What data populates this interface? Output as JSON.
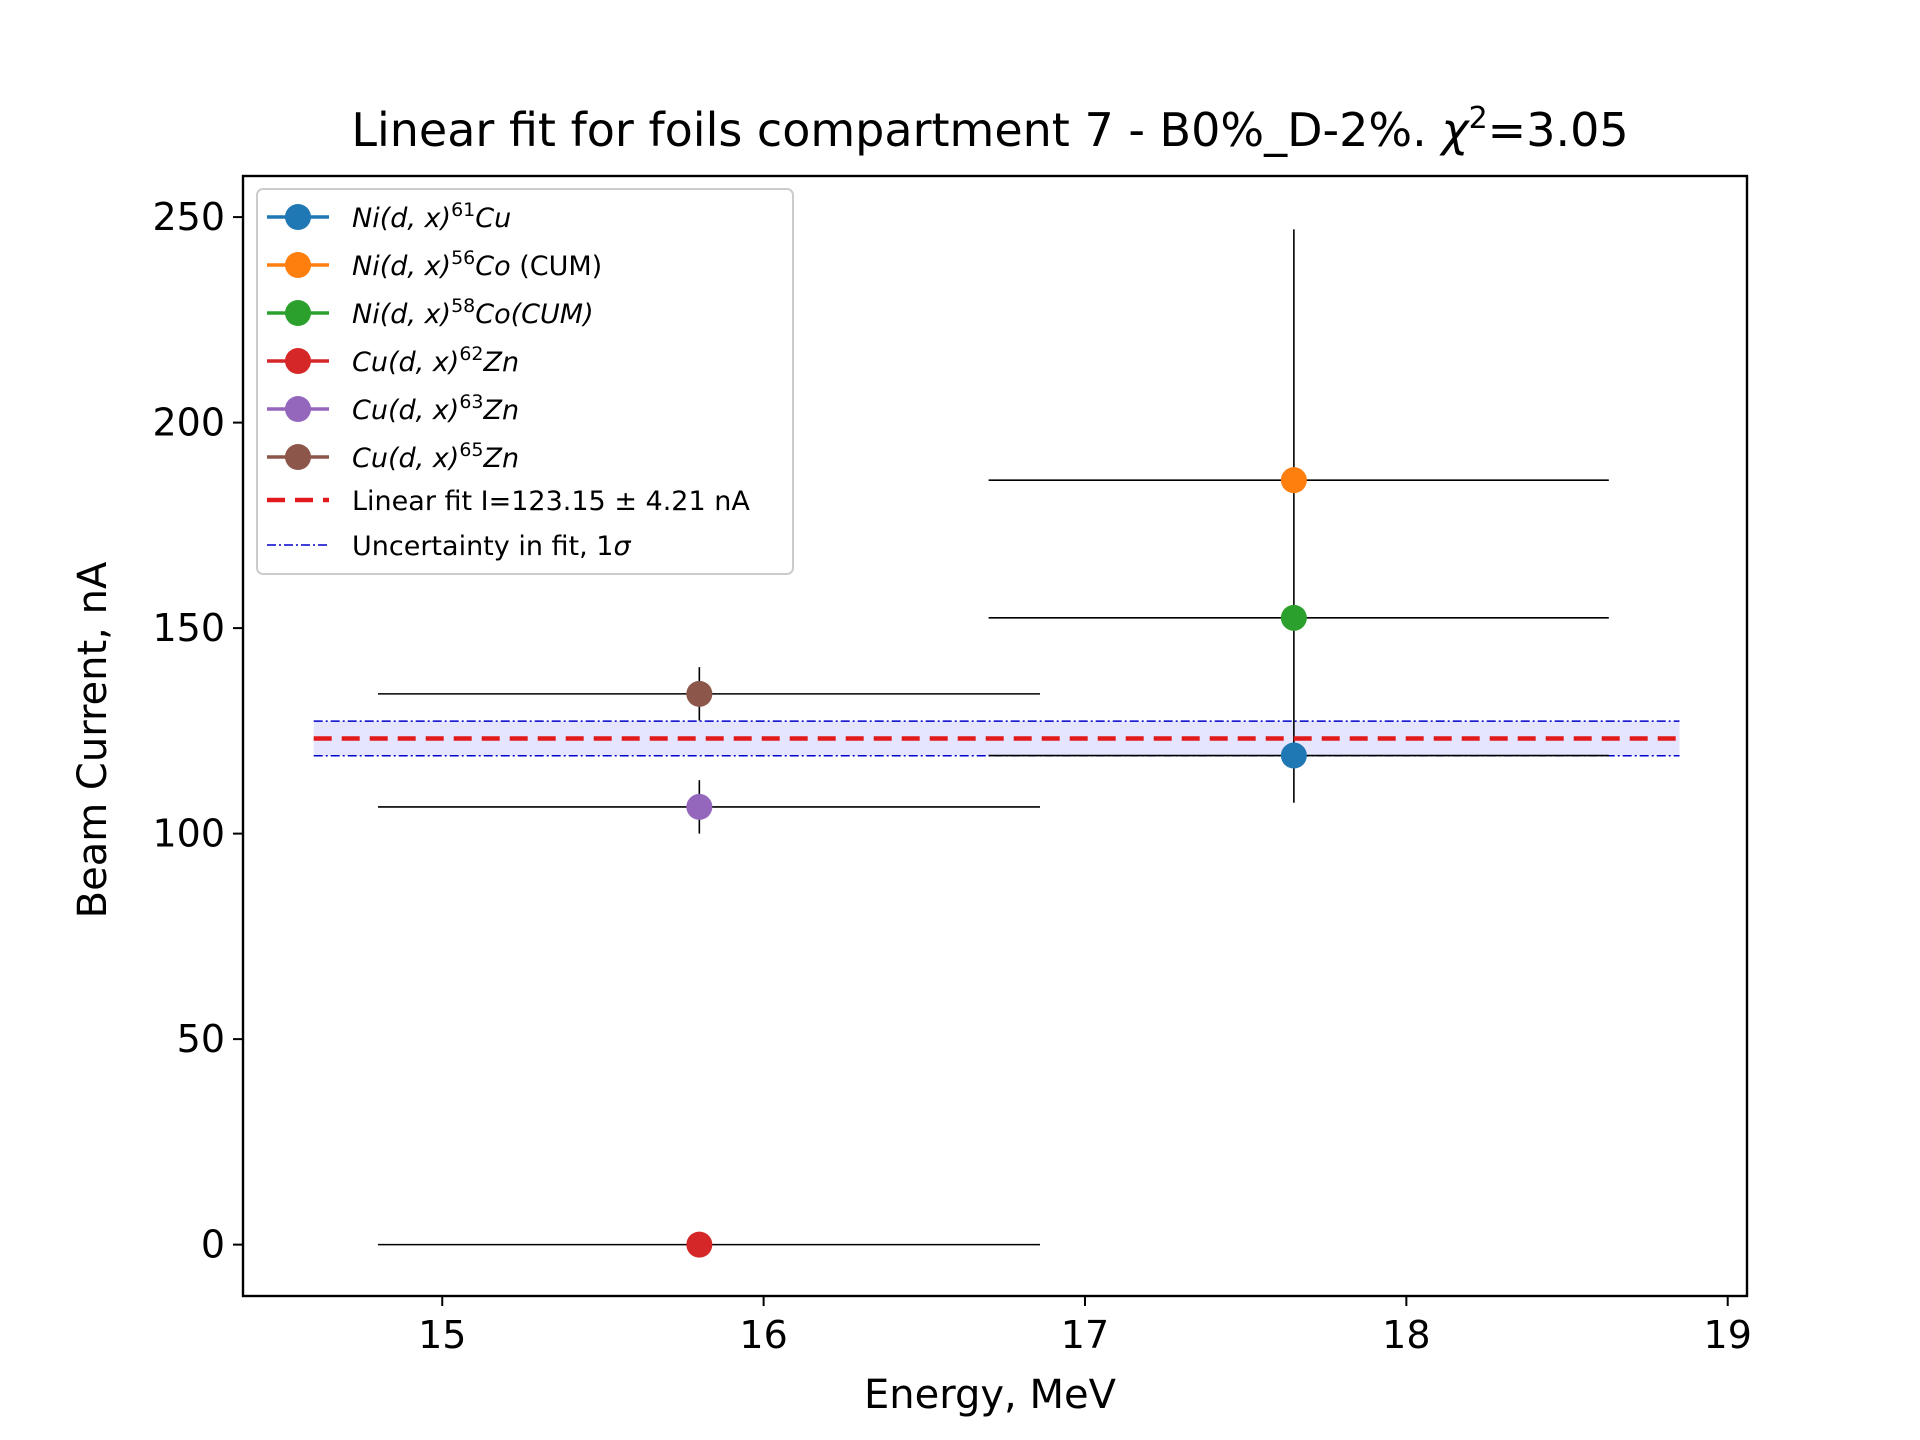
{
  "chart_data": {
    "type": "scatter",
    "title": {
      "main": "Linear fit for foils compartment 7 - B0%_D-2%. ",
      "chi_symbol": "χ",
      "chi_sup": "2",
      "chi_value": "=3.05"
    },
    "xlabel": "Energy, MeV",
    "ylabel": "Beam Current, nA",
    "xlim": [
      14.38,
      19.06
    ],
    "ylim": [
      -12.5,
      260
    ],
    "xticks": [
      15,
      16,
      17,
      18,
      19
    ],
    "yticks": [
      0,
      50,
      100,
      150,
      200,
      250
    ],
    "xtick_labels": [
      "15",
      "16",
      "17",
      "18",
      "19"
    ],
    "ytick_labels": [
      "0",
      "50",
      "100",
      "150",
      "200",
      "250"
    ],
    "grid": false,
    "legend_position": "upper left",
    "series": [
      {
        "name": "Ni(d,x)⁶¹Cu",
        "color": "#1f77b4",
        "x": 17.65,
        "y": 119,
        "xerr": [
          0.95,
          0.98
        ],
        "yerr": [
          11.5,
          128
        ]
      },
      {
        "name": "Ni(d,x)⁵⁶Co (CUM)",
        "color": "#ff7f0e",
        "x": 17.65,
        "y": 186,
        "xerr": [
          0.95,
          0.98
        ],
        "yerr": null
      },
      {
        "name": "Ni(d,x)⁵⁸Co(CUM)",
        "color": "#2ca02c",
        "x": 17.65,
        "y": 152.5,
        "xerr": [
          0.95,
          0.98
        ],
        "yerr": null
      },
      {
        "name": "Cu(d,x)⁶²Zn",
        "color": "#d62728",
        "x": 15.8,
        "y": 0,
        "xerr": [
          1.0,
          1.06
        ],
        "yerr": null
      },
      {
        "name": "Cu(d,x)⁶³Zn",
        "color": "#9467bd",
        "x": 15.8,
        "y": 106.5,
        "xerr": [
          1.0,
          1.06
        ],
        "yerr": [
          6.5,
          6.5
        ]
      },
      {
        "name": "Cu(d,x)⁶⁵Zn",
        "color": "#8c564b",
        "x": 15.8,
        "y": 134,
        "xerr": [
          1.0,
          1.06
        ],
        "yerr": [
          6.5,
          6.5
        ]
      }
    ],
    "fit": {
      "name": "Linear fit I=123.15 ± 4.21 nA",
      "color": "#e31a1c",
      "value": 123.15,
      "uncertainty": 4.21,
      "x_range": [
        14.6,
        18.85
      ],
      "band_color": "#0000cc",
      "band_name": "Uncertainty in fit, 1σ"
    },
    "legend": [
      {
        "key": "ni61",
        "prefix": "Ni",
        "mid": "(d, x)",
        "sup": "61",
        "suffix": "Cu",
        "extra": ""
      },
      {
        "key": "ni56",
        "prefix": "Ni",
        "mid": "(d, x)",
        "sup": "56",
        "suffix": "Co",
        "extra": " (CUM)"
      },
      {
        "key": "ni58",
        "prefix": "Ni",
        "mid": "(d, x)",
        "sup": "58",
        "suffix": "Co(CUM)",
        "extra": ""
      },
      {
        "key": "cu62",
        "prefix": "Cu",
        "mid": "(d, x)",
        "sup": "62",
        "suffix": "Zn",
        "extra": ""
      },
      {
        "key": "cu63",
        "prefix": "Cu",
        "mid": "(d, x)",
        "sup": "63",
        "suffix": "Zn",
        "extra": ""
      },
      {
        "key": "cu65",
        "prefix": "Cu",
        "mid": "(d, x)",
        "sup": "65",
        "suffix": "Zn",
        "extra": ""
      }
    ],
    "legend_fit_label": "Linear fit I=123.15 ± 4.21 nA",
    "legend_band_label_prefix": "Uncertainty in fit, 1",
    "legend_band_label_sigma": "σ"
  }
}
